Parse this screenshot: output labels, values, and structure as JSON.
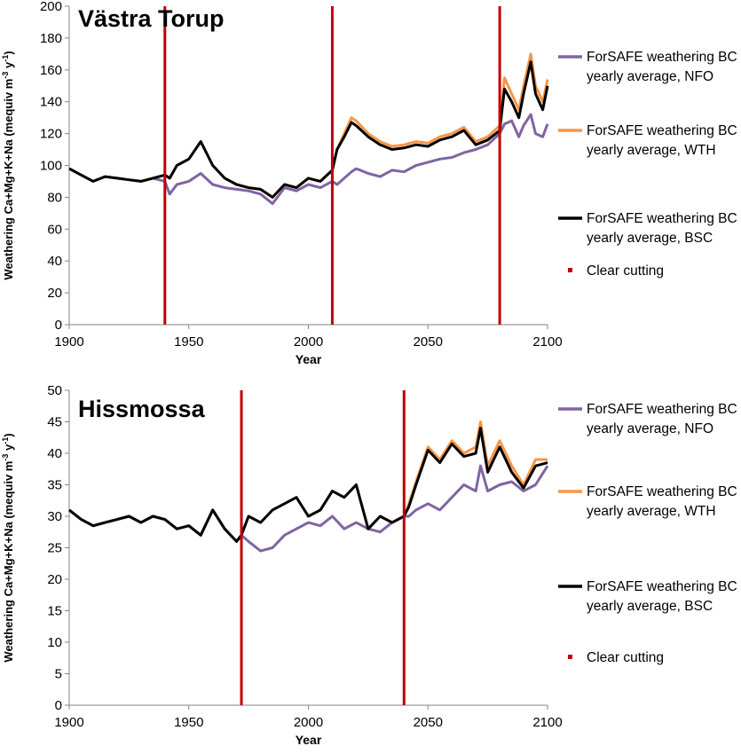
{
  "colors": {
    "NFO": "#8064a2",
    "WTH": "#f79646",
    "BSC": "#000000",
    "clear_cutting": "#c00000"
  },
  "chart_data": [
    {
      "type": "line",
      "title": "Västra Torup",
      "xlabel": "Year",
      "ylabel_parts": [
        "Weathering Ca+Mg+K+Na (mequiv m",
        "-3",
        " y",
        "-1",
        ")"
      ],
      "xlim": [
        1900,
        2100
      ],
      "ylim": [
        0,
        200
      ],
      "xticks": [
        1900,
        1950,
        2000,
        2050,
        2100
      ],
      "yticks": [
        0,
        20,
        40,
        60,
        80,
        100,
        120,
        140,
        160,
        180,
        200
      ],
      "grid": false,
      "legend_position": "right",
      "legend": [
        {
          "key": "NFO",
          "label_line1": "ForSAFE weathering BC",
          "label_line2": "yearly average, NFO"
        },
        {
          "key": "WTH",
          "label_line1": "ForSAFE weathering BC",
          "label_line2": "yearly average, WTH"
        },
        {
          "key": "BSC",
          "label_line1": "ForSAFE weathering BC",
          "label_line2": "yearly average, BSC"
        },
        {
          "key": "clear_cutting",
          "label_line1": "Clear cutting",
          "label_line2": ""
        }
      ],
      "clear_cutting_years": [
        1940,
        2010,
        2080
      ],
      "series": [
        {
          "name": "ForSAFE weathering BC yearly average, NFO",
          "key": "NFO",
          "x": [
            1900,
            1905,
            1910,
            1915,
            1920,
            1925,
            1930,
            1935,
            1940,
            1942,
            1945,
            1950,
            1955,
            1960,
            1965,
            1970,
            1975,
            1980,
            1985,
            1990,
            1995,
            2000,
            2005,
            2010,
            2012,
            2015,
            2018,
            2020,
            2025,
            2030,
            2035,
            2040,
            2045,
            2050,
            2055,
            2060,
            2065,
            2070,
            2075,
            2080,
            2082,
            2085,
            2088,
            2090,
            2093,
            2095,
            2098,
            2100
          ],
          "y": [
            98,
            94,
            90,
            93,
            92,
            91,
            90,
            92,
            90,
            82,
            88,
            90,
            95,
            88,
            86,
            85,
            84,
            82,
            76,
            86,
            84,
            88,
            86,
            90,
            88,
            92,
            96,
            98,
            95,
            93,
            97,
            96,
            100,
            102,
            104,
            105,
            108,
            110,
            113,
            120,
            126,
            128,
            118,
            125,
            132,
            120,
            118,
            126
          ]
        },
        {
          "name": "ForSAFE weathering BC yearly average, WTH",
          "key": "WTH",
          "x": [
            1900,
            1905,
            1910,
            1915,
            1920,
            1925,
            1930,
            1935,
            1940,
            1942,
            1945,
            1950,
            1955,
            1960,
            1965,
            1970,
            1975,
            1980,
            1985,
            1990,
            1995,
            2000,
            2005,
            2010,
            2012,
            2015,
            2018,
            2020,
            2025,
            2030,
            2035,
            2040,
            2045,
            2050,
            2055,
            2060,
            2065,
            2070,
            2075,
            2080,
            2082,
            2085,
            2088,
            2090,
            2093,
            2095,
            2098,
            2100
          ],
          "y": [
            98,
            94,
            90,
            93,
            92,
            91,
            90,
            92,
            94,
            92,
            100,
            104,
            115,
            100,
            92,
            88,
            86,
            85,
            80,
            88,
            86,
            92,
            90,
            97,
            110,
            120,
            130,
            128,
            120,
            115,
            112,
            113,
            115,
            114,
            118,
            120,
            124,
            115,
            118,
            125,
            155,
            145,
            135,
            150,
            170,
            150,
            140,
            154
          ]
        },
        {
          "name": "ForSAFE weathering BC yearly average, BSC",
          "key": "BSC",
          "x": [
            1900,
            1905,
            1910,
            1915,
            1920,
            1925,
            1930,
            1935,
            1940,
            1942,
            1945,
            1950,
            1955,
            1960,
            1965,
            1970,
            1975,
            1980,
            1985,
            1990,
            1995,
            2000,
            2005,
            2010,
            2012,
            2015,
            2018,
            2020,
            2025,
            2030,
            2035,
            2040,
            2045,
            2050,
            2055,
            2060,
            2065,
            2070,
            2075,
            2080,
            2082,
            2085,
            2088,
            2090,
            2093,
            2095,
            2098,
            2100
          ],
          "y": [
            98,
            94,
            90,
            93,
            92,
            91,
            90,
            92,
            94,
            92,
            100,
            104,
            115,
            100,
            92,
            88,
            86,
            85,
            80,
            88,
            86,
            92,
            90,
            97,
            110,
            118,
            127,
            125,
            118,
            113,
            110,
            111,
            113,
            112,
            116,
            118,
            122,
            113,
            116,
            122,
            148,
            140,
            130,
            145,
            165,
            145,
            135,
            150
          ]
        }
      ]
    },
    {
      "type": "line",
      "title": "Hissmossa",
      "xlabel": "Year",
      "ylabel_parts": [
        "Weathering Ca+Mg+K+Na (mequiv m",
        "-3",
        " y",
        "-1",
        ")"
      ],
      "xlim": [
        1900,
        2100
      ],
      "ylim": [
        0,
        50
      ],
      "xticks": [
        1900,
        1950,
        2000,
        2050,
        2100
      ],
      "yticks": [
        0,
        5,
        10,
        15,
        20,
        25,
        30,
        35,
        40,
        45,
        50
      ],
      "grid": false,
      "legend_position": "right",
      "legend": [
        {
          "key": "NFO",
          "label_line1": "ForSAFE weathering BC",
          "label_line2": "yearly average, NFO"
        },
        {
          "key": "WTH",
          "label_line1": "ForSAFE weathering BC",
          "label_line2": "yearly average, WTH"
        },
        {
          "key": "BSC",
          "label_line1": "ForSAFE weathering BC",
          "label_line2": "yearly average, BSC"
        },
        {
          "key": "clear_cutting",
          "label_line1": "Clear cutting",
          "label_line2": ""
        }
      ],
      "clear_cutting_years": [
        1972,
        2040
      ],
      "series": [
        {
          "name": "ForSAFE weathering BC yearly average, NFO",
          "key": "NFO",
          "x": [
            1900,
            1905,
            1910,
            1915,
            1920,
            1925,
            1930,
            1935,
            1940,
            1945,
            1950,
            1955,
            1960,
            1965,
            1970,
            1972,
            1975,
            1980,
            1985,
            1990,
            1995,
            2000,
            2005,
            2010,
            2015,
            2020,
            2025,
            2030,
            2035,
            2040,
            2042,
            2045,
            2050,
            2055,
            2060,
            2065,
            2070,
            2072,
            2075,
            2080,
            2085,
            2090,
            2095,
            2100
          ],
          "y": [
            31,
            29.5,
            28.5,
            29,
            29.5,
            30,
            29,
            30,
            29.5,
            28,
            28.5,
            27,
            31,
            28,
            26,
            27,
            26,
            24.5,
            25,
            27,
            28,
            29,
            28.5,
            30,
            28,
            29,
            28,
            27.5,
            29,
            30,
            30,
            31,
            32,
            31,
            33,
            35,
            34,
            38,
            34,
            35,
            35.5,
            34,
            35,
            38
          ]
        },
        {
          "name": "ForSAFE weathering BC yearly average, WTH",
          "key": "WTH",
          "x": [
            1900,
            1905,
            1910,
            1915,
            1920,
            1925,
            1930,
            1935,
            1940,
            1945,
            1950,
            1955,
            1960,
            1965,
            1970,
            1972,
            1975,
            1980,
            1985,
            1990,
            1995,
            2000,
            2005,
            2010,
            2015,
            2020,
            2025,
            2030,
            2035,
            2040,
            2042,
            2045,
            2050,
            2055,
            2060,
            2065,
            2070,
            2072,
            2075,
            2080,
            2085,
            2090,
            2095,
            2100
          ],
          "y": [
            31,
            29.5,
            28.5,
            29,
            29.5,
            30,
            29,
            30,
            29.5,
            28,
            28.5,
            27,
            31,
            28,
            26,
            27,
            30,
            29,
            31,
            32,
            33,
            30,
            31,
            34,
            33,
            35,
            28,
            30,
            29,
            30,
            32,
            35.5,
            41,
            39,
            42,
            40,
            41,
            45,
            38,
            42,
            38,
            35,
            39,
            39
          ]
        },
        {
          "name": "ForSAFE weathering BC yearly average, BSC",
          "key": "BSC",
          "x": [
            1900,
            1905,
            1910,
            1915,
            1920,
            1925,
            1930,
            1935,
            1940,
            1945,
            1950,
            1955,
            1960,
            1965,
            1970,
            1972,
            1975,
            1980,
            1985,
            1990,
            1995,
            2000,
            2005,
            2010,
            2015,
            2020,
            2025,
            2030,
            2035,
            2040,
            2042,
            2045,
            2050,
            2055,
            2060,
            2065,
            2070,
            2072,
            2075,
            2080,
            2085,
            2090,
            2095,
            2100
          ],
          "y": [
            31,
            29.5,
            28.5,
            29,
            29.5,
            30,
            29,
            30,
            29.5,
            28,
            28.5,
            27,
            31,
            28,
            26,
            27,
            30,
            29,
            31,
            32,
            33,
            30,
            31,
            34,
            33,
            35,
            28,
            30,
            29,
            30,
            31.5,
            35,
            40.5,
            38.5,
            41.5,
            39.5,
            40,
            44,
            37,
            41,
            37,
            34.5,
            38,
            38.5
          ]
        }
      ]
    }
  ]
}
